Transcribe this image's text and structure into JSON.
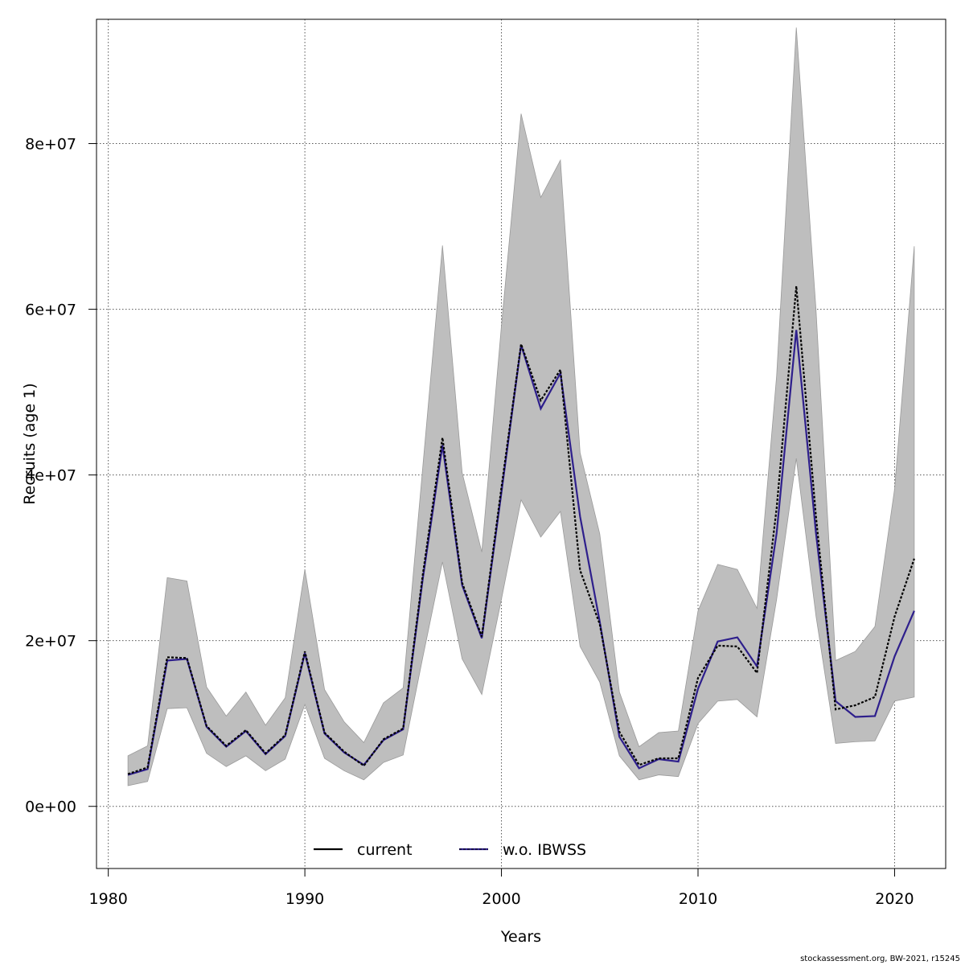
{
  "chart_data": {
    "type": "line",
    "xlabel": "Years",
    "ylabel": "Recruits (age 1)",
    "xlim": [
      1979.4,
      2022.6
    ],
    "ylim": [
      -7500000,
      95000000
    ],
    "xticks": [
      1980,
      1990,
      2000,
      2010,
      2020
    ],
    "xtick_labels": [
      "1980",
      "1990",
      "2000",
      "2010",
      "2020"
    ],
    "yticks": [
      0,
      20000000,
      40000000,
      60000000,
      80000000
    ],
    "ytick_labels": [
      "0e+00",
      "2e+07",
      "4e+07",
      "6e+07",
      "8e+07"
    ],
    "grid": true,
    "legend_position": "bottom",
    "x": [
      1981,
      1982,
      1983,
      1984,
      1985,
      1986,
      1987,
      1988,
      1989,
      1990,
      1991,
      1992,
      1993,
      1994,
      1995,
      1996,
      1997,
      1998,
      1999,
      2000,
      2001,
      2002,
      2003,
      2004,
      2005,
      2006,
      2007,
      2008,
      2009,
      2010,
      2011,
      2012,
      2013,
      2014,
      2015,
      2016,
      2017,
      2018,
      2019,
      2020,
      2021
    ],
    "band": {
      "lower": [
        2500000,
        3000000,
        11800000,
        11900000,
        6400000,
        4800000,
        6100000,
        4300000,
        5700000,
        12300000,
        5800000,
        4300000,
        3200000,
        5300000,
        6200000,
        18000000,
        29500000,
        17800000,
        13500000,
        25000000,
        37000000,
        32500000,
        35600000,
        19300000,
        15000000,
        6100000,
        3200000,
        3800000,
        3600000,
        10000000,
        12700000,
        12900000,
        10800000,
        25000000,
        42000000,
        23000000,
        7600000,
        7800000,
        7900000,
        12700000,
        13200000
      ],
      "upper": [
        6100000,
        7300000,
        27600000,
        27200000,
        14400000,
        10900000,
        13800000,
        9800000,
        13100000,
        28600000,
        14100000,
        10200000,
        7700000,
        12500000,
        14300000,
        41000000,
        67700000,
        40300000,
        30700000,
        58000000,
        83600000,
        73500000,
        78000000,
        42700000,
        32900000,
        13800000,
        7200000,
        8900000,
        9100000,
        23600000,
        29200000,
        28600000,
        23900000,
        52000000,
        94000000,
        60000000,
        17600000,
        18700000,
        21700000,
        38300000,
        67600000
      ]
    },
    "series": [
      {
        "name": "current",
        "color": "#000000",
        "values": [
          3900000,
          4700000,
          18000000,
          17900000,
          9700000,
          7300000,
          9200000,
          6400000,
          8600000,
          18700000,
          8900000,
          6600000,
          4900000,
          8100000,
          9400000,
          28000000,
          44500000,
          27000000,
          20500000,
          38500000,
          55800000,
          49000000,
          52700000,
          28500000,
          22000000,
          9000000,
          5000000,
          5800000,
          5800000,
          15500000,
          19400000,
          19300000,
          16100000,
          36000000,
          62800000,
          35000000,
          11700000,
          12200000,
          13200000,
          22900000,
          29900000
        ]
      },
      {
        "name": "w.o. IBWSS",
        "color": "#2e1f8c",
        "values": [
          3800000,
          4500000,
          17600000,
          17800000,
          9600000,
          7200000,
          9100000,
          6300000,
          8500000,
          18500000,
          8800000,
          6500000,
          5000000,
          8000000,
          9300000,
          27500000,
          43600000,
          26700000,
          20300000,
          37900000,
          55700000,
          48000000,
          52300000,
          35000000,
          22300000,
          8400000,
          4600000,
          5700000,
          5400000,
          14200000,
          19900000,
          20400000,
          16900000,
          33000000,
          57500000,
          33000000,
          12700000,
          10800000,
          10900000,
          18100000,
          23600000
        ]
      }
    ],
    "band_color": "#bebebe",
    "grid_color": "#555555"
  },
  "credit": "stockassessment.org, BW-2021, r15245"
}
